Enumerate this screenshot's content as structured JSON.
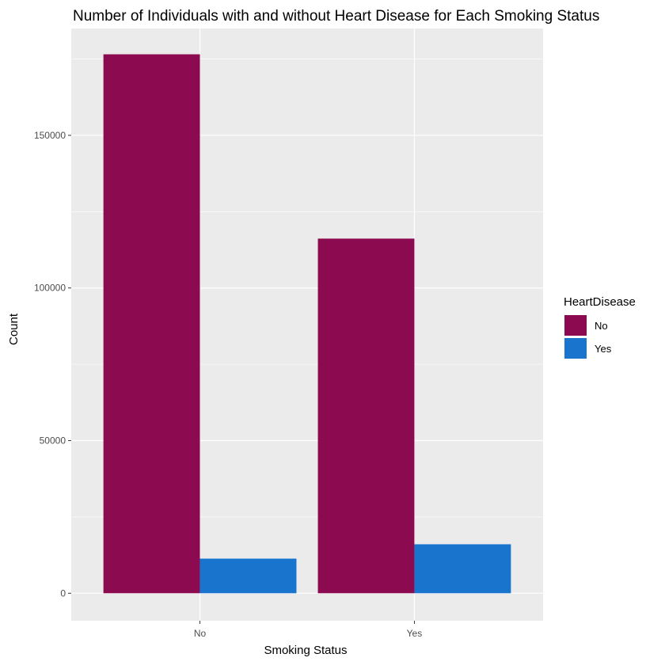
{
  "chart_data": {
    "type": "bar",
    "title": "Number of Individuals with and without Heart Disease for Each Smoking Status",
    "xlabel": "Smoking Status",
    "ylabel": "Count",
    "categories": [
      "No",
      "Yes"
    ],
    "series": [
      {
        "name": "No",
        "color": "#8B0A50",
        "values": [
          176551,
          116171
        ]
      },
      {
        "name": "Yes",
        "color": "#1874CD",
        "values": [
          11336,
          16037
        ]
      }
    ],
    "ylim": [
      -9000,
      185000
    ],
    "y_ticks": [
      0,
      50000,
      100000,
      150000
    ],
    "y_minor_ticks": [
      25000,
      75000,
      125000,
      175000
    ],
    "legend": {
      "title": "HeartDisease",
      "position": "right"
    },
    "grid": true,
    "panel_background": "#EBEBEB",
    "grid_color": "#FFFFFF"
  }
}
